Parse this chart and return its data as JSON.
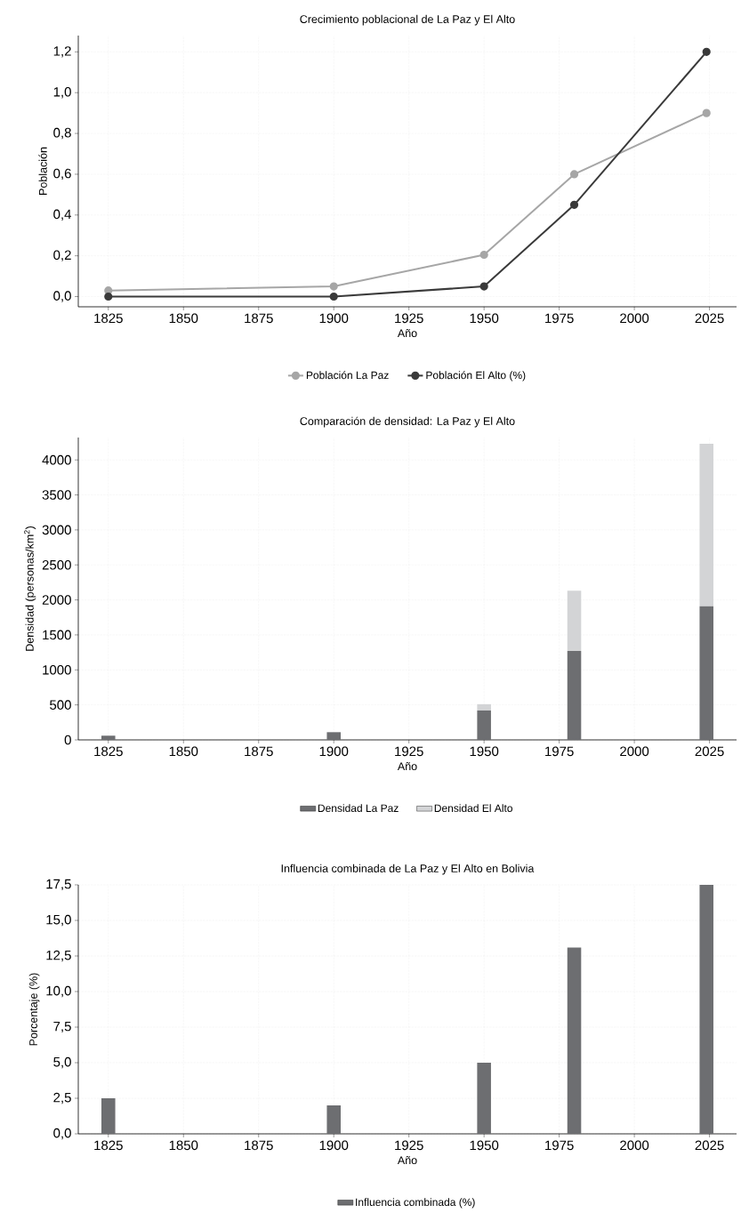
{
  "chart_data": [
    {
      "type": "line",
      "title": "Crecimiento poblacional de La Paz y El Alto",
      "xlabel": "Año",
      "ylabel": "Población",
      "x": [
        1825,
        1900,
        1950,
        1980,
        2024
      ],
      "series": [
        {
          "name": "Población La Paz",
          "color": "#a6a6a6",
          "values": [
            0.03,
            0.05,
            0.205,
            0.6,
            0.9
          ]
        },
        {
          "name": "Población El Alto (%)",
          "color": "#3a3a3a",
          "values": [
            0,
            0,
            0.05,
            0.45,
            1.2
          ]
        }
      ],
      "xlim": [
        1815,
        2034
      ],
      "ylim": [
        -0.05,
        1.28
      ],
      "xticks": [
        1825,
        1850,
        1875,
        1900,
        1925,
        1950,
        1975,
        2000,
        2025
      ],
      "yticks": [
        {
          "value": 0,
          "label": "0,0"
        },
        {
          "value": 0.2,
          "label": "0,2"
        },
        {
          "value": 0.4,
          "label": "0,4"
        },
        {
          "value": 0.6,
          "label": "0,6"
        },
        {
          "value": 0.8,
          "label": "0,8"
        },
        {
          "value": 1.0,
          "label": "1,0"
        },
        {
          "value": 1.2,
          "label": "1,2"
        }
      ],
      "grid": true,
      "legend": "bottom",
      "marker": "circle"
    },
    {
      "type": "bar",
      "title": "Comparación de densidad: La Paz y El Alto",
      "xlabel": "Año",
      "ylabel": "Densidad (personas/km$^{2}$)",
      "x": [
        1825,
        1900,
        1950,
        1980,
        2024
      ],
      "stacked": true,
      "series": [
        {
          "name": "Densidad La Paz",
          "color": "#6d6e71",
          "values": [
            60,
            110,
            420,
            1270,
            1910
          ]
        },
        {
          "name": "Densidad El Alto",
          "color": "#d3d4d6",
          "values": [
            0,
            0,
            90,
            860,
            2320
          ]
        }
      ],
      "xlim": [
        1815,
        2034
      ],
      "ylim": [
        0,
        4320
      ],
      "xticks": [
        1825,
        1850,
        1875,
        1900,
        1925,
        1950,
        1975,
        2000,
        2025
      ],
      "yticks": [
        0,
        500,
        1000,
        1500,
        2000,
        2500,
        3000,
        3500,
        4000
      ],
      "grid": true,
      "legend": "bottom"
    },
    {
      "type": "bar",
      "title": "Influencia combinada de La Paz y El Alto en Bolivia",
      "xlabel": "Año",
      "ylabel": "Porcentaje (%)",
      "x": [
        1825,
        1900,
        1950,
        1980,
        2024
      ],
      "series": [
        {
          "name": "Influencia combinada (%)",
          "color": "#6d6e71",
          "values": [
            2.5,
            2.0,
            5.0,
            13.1,
            17.5
          ]
        }
      ],
      "xlim": [
        1815,
        2034
      ],
      "ylim": [
        0,
        17.5
      ],
      "xticks": [
        1825,
        1850,
        1875,
        1900,
        1925,
        1950,
        1975,
        2000,
        2025
      ],
      "yticks": [
        {
          "value": 0,
          "label": "0,0"
        },
        {
          "value": 2.5,
          "label": "2,5"
        },
        {
          "value": 5,
          "label": "5,0"
        },
        {
          "value": 7.5,
          "label": "7,5"
        },
        {
          "value": 10,
          "label": "10,0"
        },
        {
          "value": 12.5,
          "label": "12,5"
        },
        {
          "value": 15,
          "label": "15,0"
        },
        {
          "value": 17.5,
          "label": "17,5"
        }
      ],
      "grid": true,
      "legend": "bottom"
    }
  ]
}
